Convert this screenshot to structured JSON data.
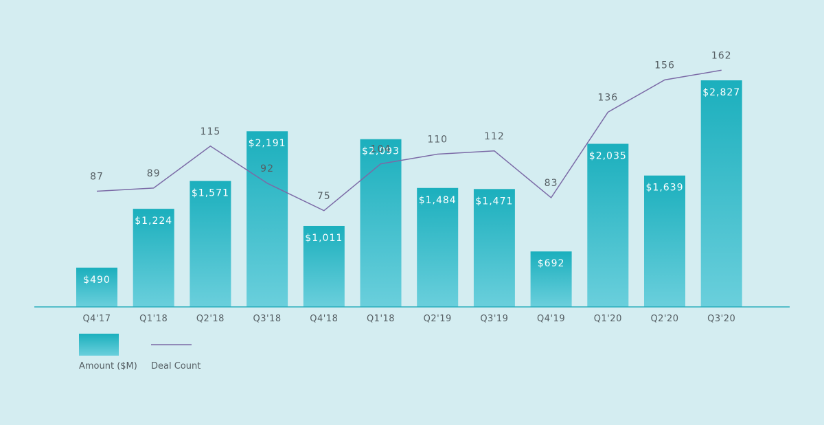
{
  "chart_data": {
    "type": "bar",
    "categories": [
      "Q4'17",
      "Q1'18",
      "Q2'18",
      "Q3'18",
      "Q4'18",
      "Q1'18",
      "Q2'19",
      "Q3'19",
      "Q4'19",
      "Q1'20",
      "Q2'20",
      "Q3'20"
    ],
    "series": [
      {
        "name": "Amount ($M)",
        "type": "bar",
        "values": [
          490,
          1224,
          1571,
          2191,
          1011,
          2093,
          1484,
          1471,
          692,
          2035,
          1639,
          2827
        ],
        "labels": [
          "$490",
          "$1,224",
          "$1,571",
          "$2,191",
          "$1,011",
          "$2,093",
          "$1,484",
          "$1,471",
          "$692",
          "$2,035",
          "$1,639",
          "$2,827"
        ],
        "color": "#1bafbd"
      },
      {
        "name": "Deal Count",
        "type": "line",
        "values": [
          87,
          89,
          115,
          92,
          75,
          104,
          110,
          112,
          83,
          136,
          156,
          162
        ],
        "labels": [
          "87",
          "89",
          "115",
          "92",
          "75",
          "104",
          "110",
          "112",
          "83",
          "136",
          "156",
          "162"
        ],
        "color": "#7b6aa6"
      }
    ],
    "ylim_amount": [
      0,
      2900
    ],
    "ylim_count": [
      0,
      160
    ],
    "grid": false,
    "legend_position": "bottom-left",
    "title": "",
    "xlabel": "",
    "ylabel": ""
  },
  "colors": {
    "background": "#d4edf1",
    "bar_top": "#1bafbd",
    "bar_bottom": "#6acfdc",
    "line": "#7b6aa6",
    "axis": "#2aaebc",
    "text": "#555e63"
  }
}
